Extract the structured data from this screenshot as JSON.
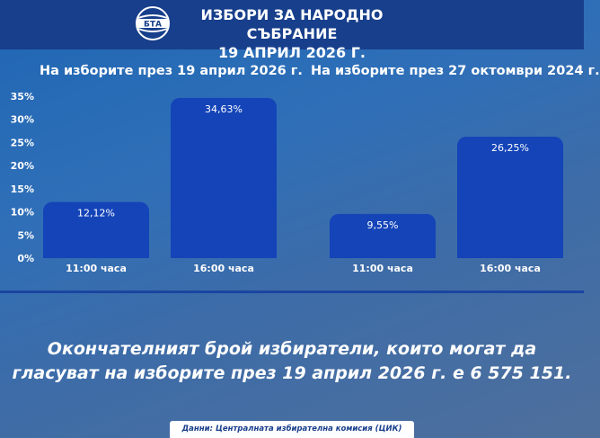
{
  "header": {
    "title_line1": "ИЗБОРИ ЗА НАРОДНО СЪБРАНИЕ",
    "title_line2": "19 АПРИЛ 2026 Г.",
    "logo_text": "БТА",
    "logo_icon": "bta-logo-icon"
  },
  "chart_data": {
    "type": "bar",
    "groups": [
      {
        "title": "На изборите през 19 април 2026 г.",
        "categories": [
          "11:00 часа",
          "16:00 часа"
        ],
        "values": [
          12.12,
          34.63
        ],
        "labels": [
          "12,12%",
          "34,63%"
        ]
      },
      {
        "title": "На изборите през 27 октомври 2024 г.",
        "categories": [
          "11:00 часа",
          "16:00 часа"
        ],
        "values": [
          9.55,
          26.25
        ],
        "labels": [
          "9,55%",
          "26,25%"
        ]
      }
    ],
    "yticks": [
      "0%",
      "5%",
      "10%",
      "15%",
      "20%",
      "25%",
      "30%",
      "35%"
    ],
    "ylim": [
      0,
      35
    ],
    "grid": false,
    "bar_color": "#1444b8"
  },
  "summary": {
    "line1": "Окончателният брой избиратели, които могат да",
    "line2": "гласуват на изборите през 19 април 2026 г. е 6 575 151."
  },
  "source": "Данни: Централната избирателна комисия (ЦИК)"
}
